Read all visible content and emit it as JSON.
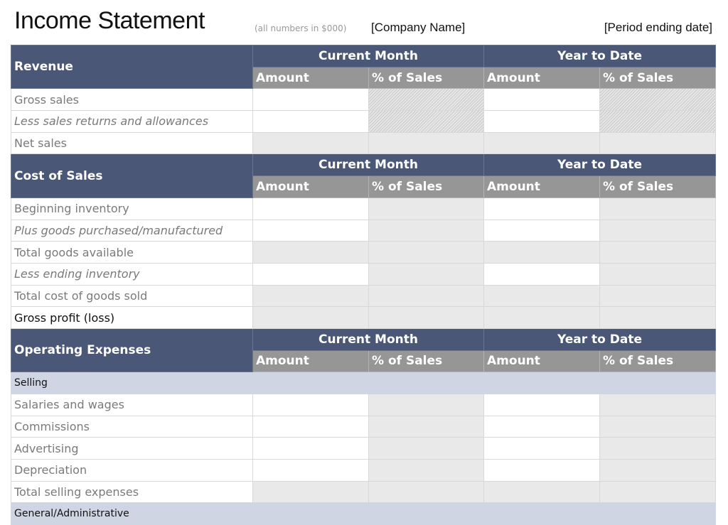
{
  "header": {
    "title": "Income Statement",
    "note": "(all numbers in $000)",
    "company": "[Company Name]",
    "period": "[Period ending date]"
  },
  "columns": {
    "current_month": "Current Month",
    "year_to_date": "Year to Date",
    "amount": "Amount",
    "pct_sales": "% of Sales"
  },
  "sections": [
    {
      "title": "Revenue",
      "rows": [
        {
          "label": "Gross sales",
          "style": "normal",
          "fill": "input-hatch"
        },
        {
          "label": "Less sales returns and allowances",
          "style": "italic",
          "fill": "input-hatch"
        },
        {
          "label": "Net sales",
          "style": "normal",
          "fill": "calc"
        }
      ]
    },
    {
      "title": "Cost of Sales",
      "rows": [
        {
          "label": "Beginning inventory",
          "style": "normal",
          "fill": "input"
        },
        {
          "label": "Plus goods purchased/manufactured",
          "style": "italic",
          "fill": "input"
        },
        {
          "label": "Total goods available",
          "style": "normal",
          "fill": "calc"
        },
        {
          "label": "Less ending inventory",
          "style": "italic",
          "fill": "input"
        },
        {
          "label": "Total cost of goods sold",
          "style": "normal",
          "fill": "calc"
        },
        {
          "label": "Gross profit (loss)",
          "style": "dark",
          "fill": "calc"
        }
      ]
    },
    {
      "title": "Operating Expenses",
      "rows": [
        {
          "label": "Selling",
          "style": "band",
          "fill": "band"
        },
        {
          "label": "Salaries and wages",
          "style": "normal",
          "fill": "input"
        },
        {
          "label": "Commissions",
          "style": "normal",
          "fill": "input"
        },
        {
          "label": "Advertising",
          "style": "normal",
          "fill": "input"
        },
        {
          "label": "Depreciation",
          "style": "normal",
          "fill": "input"
        },
        {
          "label": "Total selling expenses",
          "style": "normal",
          "fill": "calc"
        },
        {
          "label": "General/Administrative",
          "style": "band",
          "fill": "band"
        }
      ]
    }
  ],
  "colors": {
    "section_header": "#4a5777",
    "sub_header": "#969696",
    "band": "#d0d5e3",
    "calc_cell": "#e9e9e9"
  }
}
